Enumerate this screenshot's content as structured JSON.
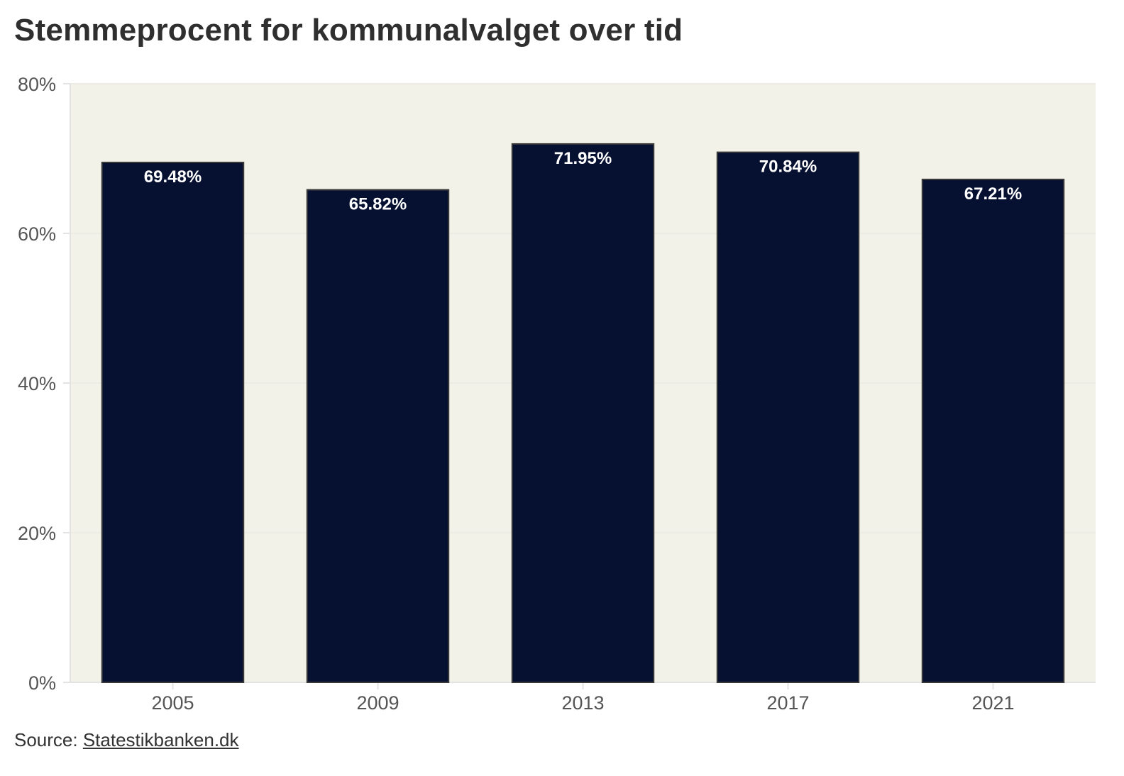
{
  "title": "Stemmeprocent for kommunalvalget over tid",
  "source": {
    "prefix": "Source: ",
    "link_text": "Statestikbanken.dk"
  },
  "colors": {
    "bar": "#061031",
    "bar_stroke": "#3a3a3a",
    "plot_bg": "#f3f2e8",
    "grid": "#ecebe4",
    "axis": "#e3e3e3"
  },
  "chart_data": {
    "type": "bar",
    "categories": [
      "2005",
      "2009",
      "2013",
      "2017",
      "2021"
    ],
    "values": [
      69.48,
      65.82,
      71.95,
      70.84,
      67.21
    ],
    "data_labels": [
      "69.48%",
      "65.82%",
      "71.95%",
      "70.84%",
      "67.21%"
    ],
    "title": "Stemmeprocent for kommunalvalget over tid",
    "xlabel": "",
    "ylabel": "",
    "ylim": [
      0,
      80
    ],
    "yticks": [
      0,
      20,
      40,
      60,
      80
    ],
    "ytick_labels": [
      "0%",
      "20%",
      "40%",
      "60%",
      "80%"
    ],
    "grid": true,
    "legend": "none"
  }
}
